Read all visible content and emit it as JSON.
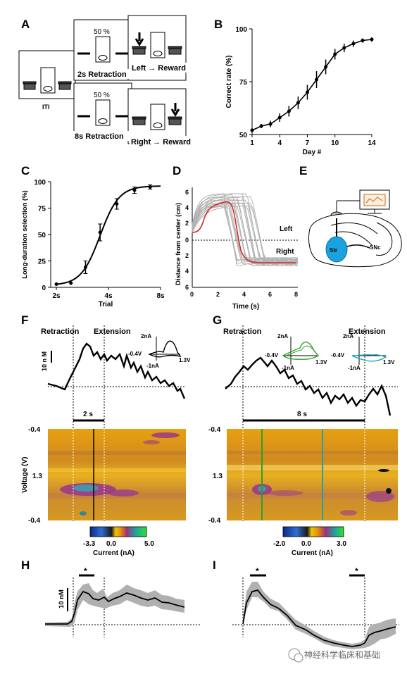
{
  "panels": {
    "A": "A",
    "B": "B",
    "C": "C",
    "D": "D",
    "E": "E",
    "F": "F",
    "G": "G",
    "H": "H",
    "I": "I"
  },
  "panel_a": {
    "iti_label": "ITI",
    "percent_top": "50 %",
    "percent_bottom": "50 %",
    "retraction_2s": "2s Retraction",
    "retraction_8s": "8s Retraction",
    "left_reward": "Left → Reward",
    "right_reward": "Right → Reward"
  },
  "panel_d": {
    "left_label": "Left",
    "right_label": "Right",
    "xlabel": "Time (s)",
    "ylabel": "Distance from center (cm)",
    "yticks": [
      "6",
      "4",
      "2",
      "0",
      "2",
      "4",
      "6"
    ],
    "xticks": [
      "0",
      "2",
      "4",
      "6",
      "8"
    ]
  },
  "panel_e": {
    "str_label": "Str",
    "snc_label": "SNc"
  },
  "panel_f": {
    "retraction": "Retraction",
    "extension": "Extension",
    "scale_nm": "10 n M",
    "inset_na": "2nA",
    "inset_neg_v": "-0.4V",
    "inset_pos_v": "1.3V",
    "inset_neg_na": "-1nA",
    "duration": "2 s",
    "ylabel": "Voltage (V)",
    "yticks": [
      "-0.4",
      "1.3",
      "-0.4"
    ],
    "cbar_min": "-3.3",
    "cbar_mid": "0.0",
    "cbar_max": "5.0",
    "cbar_label": "Current (nA)"
  },
  "panel_g": {
    "retraction": "Retraction",
    "extension": "Extension",
    "inset1_na": "2nA",
    "inset1_neg_v": "-0.4V",
    "inset1_pos_v": "1.3V",
    "inset1_neg_na": "-1nA",
    "inset2_na": "2nA",
    "inset2_neg_v": "-0.4V",
    "inset2_pos_v": "1.3V",
    "inset2_neg_na": "-1nA",
    "duration": "8 s",
    "yticks": [
      "-0.4",
      "1.3",
      "-0.4"
    ],
    "cbar_min": "-2.0",
    "cbar_mid": "0.0",
    "cbar_max": "3.0",
    "cbar_label": "Current (nA)"
  },
  "panel_h": {
    "scale_nm": "10 nM",
    "sig": "*"
  },
  "panel_i": {
    "sig1": "*",
    "sig2": "*"
  },
  "watermark": "神经科学临床和基础",
  "colors": {
    "red": "#d62728",
    "green": "#2ca02c",
    "cyan": "#17a2b8",
    "gray": "#b0b0b0",
    "blue_brain": "#1aa3e0"
  },
  "chart_data": [
    {
      "type": "line",
      "panel": "B",
      "xlabel": "Day #",
      "ylabel": "Correct rate (%)",
      "xticks": [
        "1",
        "4",
        "7",
        "10",
        "14"
      ],
      "yticks": [
        "50",
        "75",
        "100"
      ],
      "xlim": [
        1,
        14
      ],
      "ylim": [
        50,
        100
      ],
      "x": [
        1,
        2,
        3,
        4,
        5,
        6,
        7,
        8,
        9,
        10,
        11,
        12,
        13,
        14
      ],
      "values": [
        52,
        54,
        55,
        58,
        61,
        65,
        70,
        76,
        82,
        88,
        91,
        93,
        94.5,
        95
      ],
      "errors": [
        1,
        1,
        1.5,
        2,
        2.5,
        3,
        3.5,
        4,
        3.5,
        2.5,
        2,
        1.5,
        1,
        1
      ]
    },
    {
      "type": "line",
      "panel": "C",
      "xlabel": "Trial",
      "ylabel": "Long-duration selection (%)",
      "xticks": [
        "2s",
        "4s",
        "8s"
      ],
      "yticks": [
        "0",
        "25",
        "50",
        "75",
        "100"
      ],
      "ylim": [
        0,
        100
      ],
      "x_pos": [
        0,
        0.14,
        0.28,
        0.42,
        0.58,
        0.75,
        0.9
      ],
      "values": [
        3,
        4,
        19,
        52,
        79,
        92,
        95
      ],
      "errors": [
        0,
        0,
        6,
        8,
        5,
        3,
        2
      ]
    }
  ]
}
